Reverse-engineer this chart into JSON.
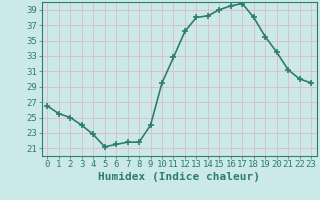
{
  "x": [
    0,
    1,
    2,
    3,
    4,
    5,
    6,
    7,
    8,
    9,
    10,
    11,
    12,
    13,
    14,
    15,
    16,
    17,
    18,
    19,
    20,
    21,
    22,
    23
  ],
  "y": [
    26.5,
    25.5,
    25.0,
    24.0,
    22.8,
    21.2,
    21.5,
    21.8,
    21.8,
    24.0,
    29.5,
    32.8,
    36.2,
    38.0,
    38.2,
    39.0,
    39.5,
    39.8,
    38.0,
    35.5,
    33.5,
    31.2,
    30.0,
    29.5
  ],
  "line_color": "#2e7d6e",
  "marker": "+",
  "marker_size": 4,
  "marker_linewidth": 1.2,
  "line_width": 1.2,
  "xlabel": "Humidex (Indice chaleur)",
  "ylim": [
    20,
    40
  ],
  "xlim": [
    -0.5,
    23.5
  ],
  "yticks": [
    21,
    23,
    25,
    27,
    29,
    31,
    33,
    35,
    37,
    39
  ],
  "xticks": [
    0,
    1,
    2,
    3,
    4,
    5,
    6,
    7,
    8,
    9,
    10,
    11,
    12,
    13,
    14,
    15,
    16,
    17,
    18,
    19,
    20,
    21,
    22,
    23
  ],
  "bg_color": "#cce9e9",
  "grid_color": "#ddbbbb",
  "tick_color": "#2e7d6e",
  "label_color": "#2e7d6e",
  "xlabel_fontsize": 8,
  "tick_fontsize": 6.5
}
